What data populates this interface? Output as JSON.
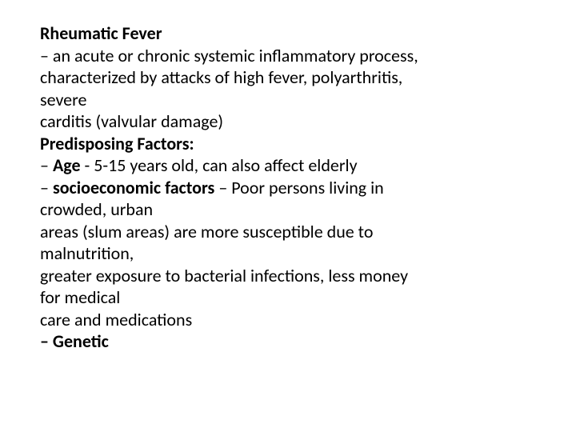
{
  "slide": {
    "font_family": "Calibri, Arial, sans-serif",
    "font_size_pt": 22,
    "line_height": 1.25,
    "text_color": "#000000",
    "background_color": "#ffffff",
    "lines": {
      "l1": "Rheumatic Fever",
      "l2": "– an acute or chronic systemic inflammatory process,",
      "l3": "characterized by attacks of high fever, polyarthritis,",
      "l4": "severe",
      "l5": "carditis (valvular damage)",
      "l6": "Predisposing Factors:",
      "l7a": "– ",
      "l7b": "Age",
      "l7c": " - 5-15 years old, can also affect elderly",
      "l8a": "– ",
      "l8b": "socioeconomic factors",
      "l8c": " – Poor persons living in",
      "l9": "crowded, urban",
      "l10": "areas (slum areas) are more susceptible due to",
      "l11": "malnutrition,",
      "l12": "greater exposure to bacterial infections, less money",
      "l13": "for medical",
      "l14": "care and medications",
      "l15": "– Genetic"
    }
  }
}
